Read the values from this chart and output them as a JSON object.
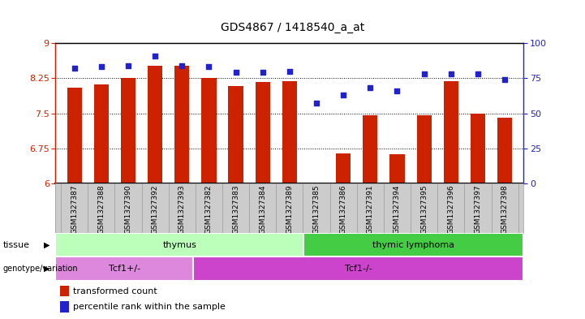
{
  "title": "GDS4867 / 1418540_a_at",
  "samples": [
    "GSM1327387",
    "GSM1327388",
    "GSM1327390",
    "GSM1327392",
    "GSM1327393",
    "GSM1327382",
    "GSM1327383",
    "GSM1327384",
    "GSM1327389",
    "GSM1327385",
    "GSM1327386",
    "GSM1327391",
    "GSM1327394",
    "GSM1327395",
    "GSM1327396",
    "GSM1327397",
    "GSM1327398"
  ],
  "bar_values": [
    8.05,
    8.12,
    8.25,
    8.52,
    8.52,
    8.25,
    8.08,
    8.16,
    8.18,
    6.02,
    6.65,
    7.45,
    6.62,
    7.45,
    8.18,
    7.5,
    7.4
  ],
  "dot_values": [
    82,
    83,
    84,
    91,
    84,
    83,
    79,
    79,
    80,
    57,
    63,
    68,
    66,
    78,
    78,
    78,
    74
  ],
  "ylim_left": [
    6,
    9
  ],
  "ylim_right": [
    0,
    100
  ],
  "yticks_left": [
    6,
    6.75,
    7.5,
    8.25,
    9
  ],
  "yticks_right": [
    0,
    25,
    50,
    75,
    100
  ],
  "bar_color": "#cc2200",
  "dot_color": "#2222cc",
  "tissue_groups": [
    {
      "label": "thymus",
      "start": 0,
      "end": 9,
      "color": "#bbffbb"
    },
    {
      "label": "thymic lymphoma",
      "start": 9,
      "end": 17,
      "color": "#44cc44"
    }
  ],
  "genotype_groups": [
    {
      "label": "Tcf1+/-",
      "start": 0,
      "end": 5,
      "color": "#dd88dd"
    },
    {
      "label": "Tcf1-/-",
      "start": 5,
      "end": 17,
      "color": "#cc44cc"
    }
  ],
  "legend_items": [
    {
      "label": "transformed count",
      "color": "#cc2200"
    },
    {
      "label": "percentile rank within the sample",
      "color": "#2222cc"
    }
  ],
  "grid_color": "black",
  "background_color": "white",
  "axis_label_color_left": "#cc2200",
  "axis_label_color_right": "#2222cc",
  "label_bg_color": "#cccccc",
  "label_border_color": "#999999"
}
